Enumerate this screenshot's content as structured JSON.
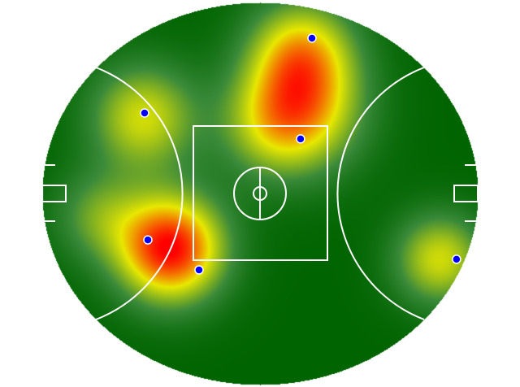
{
  "chart_data": {
    "type": "heatmap",
    "field_shape": "oval",
    "xlim": [
      -80,
      80
    ],
    "ylim": [
      -70,
      70
    ],
    "colorscale": [
      "#006400",
      "#3a8a3a",
      "#e8e800",
      "#ff0000"
    ],
    "density_peaks": [
      {
        "x": -33,
        "y": -20,
        "intensity": 1.0,
        "spread": 14
      },
      {
        "x": -43,
        "y": 28,
        "intensity": 0.55,
        "spread": 14
      },
      {
        "x": 15,
        "y": 52,
        "intensity": 0.6,
        "spread": 14
      },
      {
        "x": 17,
        "y": 30,
        "intensity": 0.5,
        "spread": 16
      },
      {
        "x": 4,
        "y": 25,
        "intensity": 0.35,
        "spread": 14
      },
      {
        "x": 66,
        "y": -24,
        "intensity": 0.55,
        "spread": 12
      },
      {
        "x": -60,
        "y": -8,
        "intensity": 0.3,
        "spread": 12
      }
    ],
    "points": [
      {
        "x": 19.1,
        "y": 56.9
      },
      {
        "x": -42.4,
        "y": 29.5
      },
      {
        "x": 14.9,
        "y": 20.0
      },
      {
        "x": -41.2,
        "y": -17.0
      },
      {
        "x": -22.4,
        "y": -28.0
      },
      {
        "x": 72.2,
        "y": -24.1
      }
    ],
    "point_color": "#0000ff",
    "line_color": "#ffffff"
  }
}
